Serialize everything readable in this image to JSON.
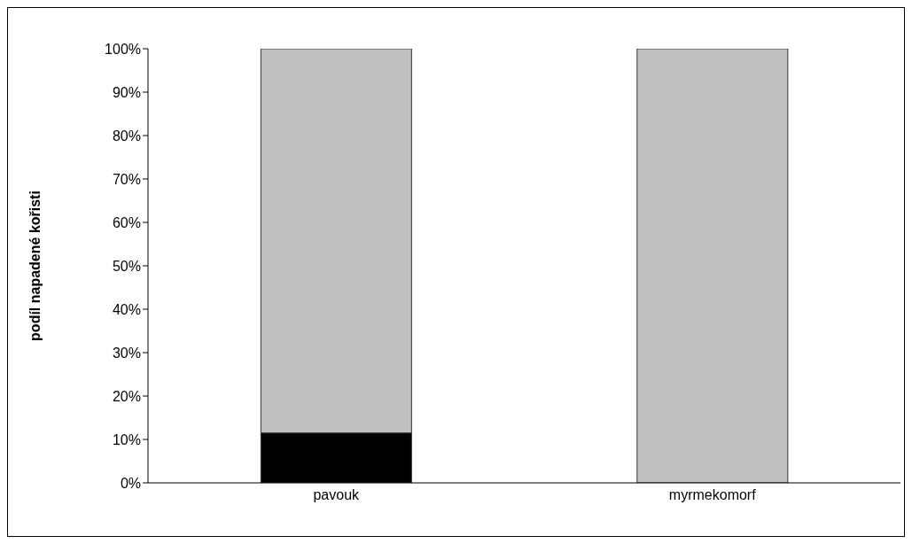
{
  "chart_data": {
    "type": "bar",
    "stacked": true,
    "ylabel": "podíl napadené kořisti",
    "categories": [
      "pavouk",
      "myrmekomorf"
    ],
    "series": [
      {
        "color": "#000000",
        "values": [
          11.5,
          0
        ]
      },
      {
        "color": "#c0c0c0",
        "values": [
          88.5,
          100
        ]
      }
    ],
    "ylim": [
      0,
      100
    ],
    "yticks": [
      {
        "value": 0,
        "label": "0%"
      },
      {
        "value": 10,
        "label": "10%"
      },
      {
        "value": 20,
        "label": "20%"
      },
      {
        "value": 30,
        "label": "30%"
      },
      {
        "value": 40,
        "label": "40%"
      },
      {
        "value": 50,
        "label": "50%"
      },
      {
        "value": 60,
        "label": "60%"
      },
      {
        "value": 70,
        "label": "70%"
      },
      {
        "value": 80,
        "label": "80%"
      },
      {
        "value": 90,
        "label": "90%"
      },
      {
        "value": 100,
        "label": "100%"
      }
    ],
    "grid": false,
    "legend": false
  }
}
